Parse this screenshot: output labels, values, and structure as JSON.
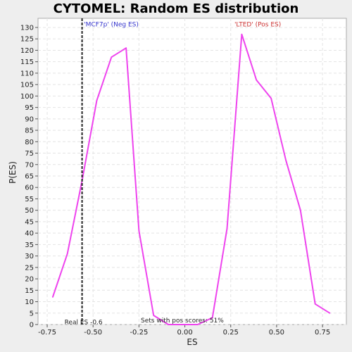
{
  "chart_data": {
    "type": "line",
    "title": "CYTOMEL: Random ES distribution",
    "xlabel": "ES",
    "ylabel": "P(ES)",
    "xlim": [
      -0.8,
      0.88
    ],
    "ylim": [
      0,
      134
    ],
    "x_ticks": [
      -0.75,
      -0.5,
      -0.25,
      0.0,
      0.25,
      0.5,
      0.75
    ],
    "x_tick_labels": [
      "-0.75",
      "-0.50",
      "-0.25",
      "0.00",
      "0.25",
      "0.50",
      "0.75"
    ],
    "y_ticks": [
      0,
      5,
      10,
      15,
      20,
      25,
      30,
      35,
      40,
      45,
      50,
      55,
      60,
      65,
      70,
      75,
      80,
      85,
      90,
      95,
      100,
      105,
      110,
      115,
      120,
      125,
      130
    ],
    "y_tick_labels": [
      "0",
      "5",
      "10",
      "15",
      "20",
      "25",
      "30",
      "35",
      "40",
      "45",
      "50",
      "55",
      "60",
      "65",
      "70",
      "75",
      "80",
      "85",
      "90",
      "95",
      "100",
      "105",
      "110",
      "115",
      "120",
      "125",
      "130"
    ],
    "grid": true,
    "series": [
      {
        "color": "#ee44ee",
        "x": [
          -0.72,
          -0.64,
          -0.56,
          -0.48,
          -0.4,
          -0.32,
          -0.25,
          -0.17,
          -0.09,
          -0.01,
          0.07,
          0.15,
          0.23,
          0.31,
          0.39,
          0.47,
          0.55,
          0.63,
          0.71,
          0.79
        ],
        "y": [
          12,
          31,
          63,
          98,
          117,
          121,
          41,
          4,
          0,
          0,
          0,
          3,
          42,
          127,
          107,
          99,
          72,
          50,
          9,
          5
        ]
      }
    ],
    "real_es": {
      "value": -0.56,
      "label": "Real ES -0.6",
      "color": "#222222"
    },
    "annotations": [
      {
        "text": "'MCF7p' (Neg ES)",
        "x": -0.55,
        "y": 130.5,
        "color": "#3333cc"
      },
      {
        "text": "'LTED' (Pos ES)",
        "x": 0.27,
        "y": 130.5,
        "color": "#cc3333"
      },
      {
        "text": "Sets with pos scores: 51%",
        "x": -0.24,
        "y": 1,
        "color": "#222222"
      }
    ]
  }
}
